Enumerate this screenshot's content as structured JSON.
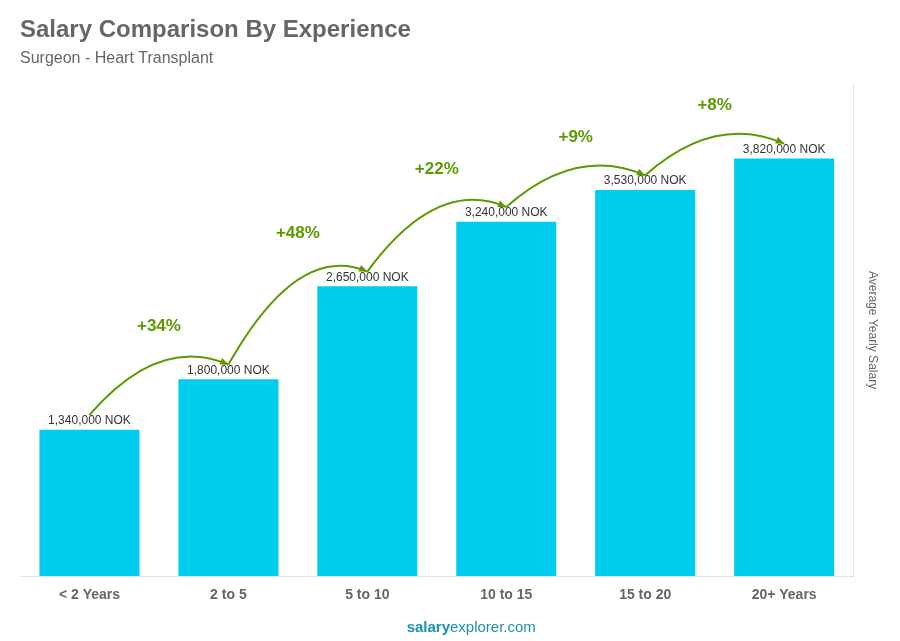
{
  "chart_data": {
    "type": "bar",
    "title": "Salary Comparison By Experience",
    "subtitle": "Surgeon - Heart Transplant",
    "ylabel": "Average Yearly Salary",
    "categories": [
      "< 2 Years",
      "2 to 5",
      "5 to 10",
      "10 to 15",
      "15 to 20",
      "20+ Years"
    ],
    "values": [
      1340000,
      1800000,
      2650000,
      3240000,
      3530000,
      3820000
    ],
    "value_labels": [
      "1,340,000 NOK",
      "1,800,000 NOK",
      "2,650,000 NOK",
      "3,240,000 NOK",
      "3,530,000 NOK",
      "3,820,000 NOK"
    ],
    "data_labels": true,
    "annotations": [
      "+34%",
      "+48%",
      "+22%",
      "+9%",
      "+8%"
    ],
    "watermark": [
      "salary",
      "explorer.com"
    ],
    "color": "#00CCEE",
    "ylim": [
      0,
      4500000
    ],
    "grid": false,
    "tick_labels": "x"
  }
}
